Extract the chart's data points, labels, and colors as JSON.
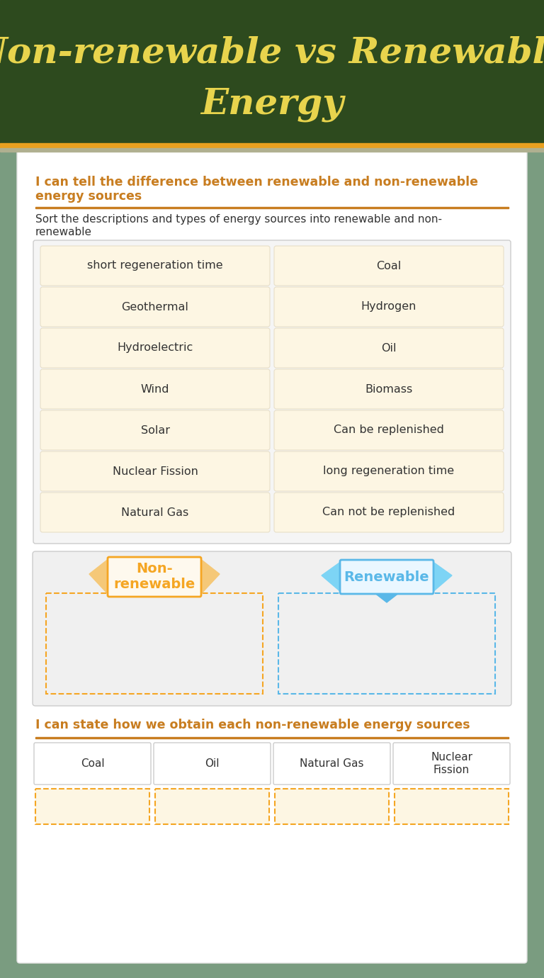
{
  "title_line1": "Non-renewable vs Renewable",
  "title_line2": "Energy",
  "title_color": "#E8D44D",
  "bg_color_top": "#2d4a1e",
  "bg_color_main": "#7a9c80",
  "white_card_color": "#ffffff",
  "section1_heading_line1": "I can tell the difference between renewable and non-renewable",
  "section1_heading_line2": "energy sources",
  "section1_heading_color": "#c87d20",
  "section1_instruction_line1": "Sort the descriptions and types of energy sources into renewable and non-",
  "section1_instruction_line2": "renewable",
  "grid_items_left": [
    "short regeneration time",
    "Geothermal",
    "Hydroelectric",
    "Wind",
    "Solar",
    "Nuclear Fission",
    "Natural Gas"
  ],
  "grid_items_right": [
    "Coal",
    "Hydrogen",
    "Oil",
    "Biomass",
    "Can be replenished",
    "long regeneration time",
    "Can not be replenished"
  ],
  "grid_item_bg": "#fdf6e3",
  "grid_item_border": "#e8dfc8",
  "grid_outer_bg": "#f5f5f5",
  "grid_outer_border": "#cccccc",
  "nonrenewable_label": "Non-\nrenewable",
  "renewable_label": "Renewable",
  "nonrenewable_color": "#f5a623",
  "nonrenewable_ribbon_color": "#f5c878",
  "renewable_color": "#5ab8e8",
  "renewable_ribbon_color": "#7dd4f5",
  "sort_outer_bg": "#f0f0f0",
  "sort_outer_border": "#cccccc",
  "section2_heading": "I can state how we obtain each non-renewable energy sources",
  "section2_heading_color": "#c87d20",
  "bottom_labels": [
    "Coal",
    "Oil",
    "Natural Gas",
    "Nuclear\nFission"
  ],
  "bottom_box_bg": "#ffffff",
  "bottom_box_border": "#cccccc",
  "answer_box_border": "#f5a623",
  "gold_bar_color": "#e8a020",
  "gray_bar_color": "#b0b090",
  "text_color": "#333333"
}
